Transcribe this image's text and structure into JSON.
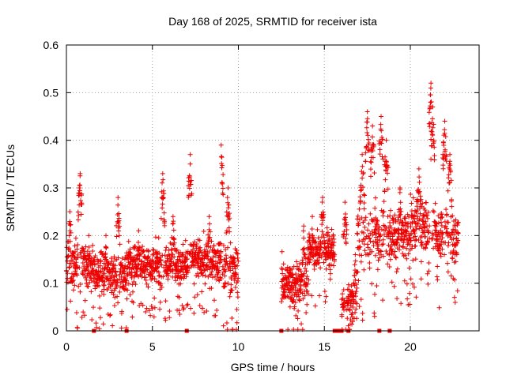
{
  "chart_data": {
    "type": "scatter",
    "title": "Day 168 of 2025, SRMTID for receiver ista",
    "xlabel": "GPS time / hours",
    "ylabel": "SRMTID / TECUs",
    "xlim": [
      0,
      24
    ],
    "ylim": [
      0,
      0.6
    ],
    "x_ticks": [
      {
        "value": 0,
        "label": "0"
      },
      {
        "value": 5,
        "label": "5"
      },
      {
        "value": 10,
        "label": "10"
      },
      {
        "value": 15,
        "label": "15"
      },
      {
        "value": 20,
        "label": "20"
      }
    ],
    "y_ticks": [
      {
        "value": 0,
        "label": "0"
      },
      {
        "value": 0.1,
        "label": "0.1"
      },
      {
        "value": 0.2,
        "label": "0.2"
      },
      {
        "value": 0.3,
        "label": "0.3"
      },
      {
        "value": 0.4,
        "label": "0.4"
      },
      {
        "value": 0.5,
        "label": "0.5"
      },
      {
        "value": 0.6,
        "label": "0.6"
      }
    ],
    "grid": true,
    "marker": "plus",
    "color": "#ee0000",
    "zero_markers_x": [
      1.6,
      3.5,
      7.0,
      12.5,
      15.6,
      15.8,
      16.0,
      16.4,
      18.2,
      18.8
    ],
    "segments": [
      {
        "x0": 0.0,
        "x1": 1.6,
        "base": 0.14,
        "spread": 0.07,
        "peaks": [
          [
            0.2,
            0.25
          ],
          [
            0.8,
            0.33
          ],
          [
            1.3,
            0.2
          ]
        ]
      },
      {
        "x0": 1.6,
        "x1": 3.5,
        "base": 0.12,
        "spread": 0.06,
        "peaks": [
          [
            3.0,
            0.28
          ],
          [
            2.3,
            0.2
          ]
        ]
      },
      {
        "x0": 3.5,
        "x1": 7.0,
        "base": 0.14,
        "spread": 0.06,
        "peaks": [
          [
            5.6,
            0.33
          ],
          [
            4.2,
            0.21
          ],
          [
            6.2,
            0.24
          ]
        ]
      },
      {
        "x0": 7.0,
        "x1": 9.0,
        "base": 0.15,
        "spread": 0.06,
        "peaks": [
          [
            7.2,
            0.37
          ],
          [
            8.3,
            0.24
          ]
        ]
      },
      {
        "x0": 9.0,
        "x1": 10.0,
        "base": 0.13,
        "spread": 0.07,
        "peaks": [
          [
            9.0,
            0.39
          ],
          [
            9.4,
            0.3
          ]
        ]
      },
      {
        "x0": 12.5,
        "x1": 14.0,
        "base": 0.1,
        "spread": 0.07,
        "peaks": [
          [
            13.8,
            0.22
          ]
        ]
      },
      {
        "x0": 14.0,
        "x1": 15.6,
        "base": 0.17,
        "spread": 0.06,
        "peaks": [
          [
            14.9,
            0.28
          ],
          [
            14.3,
            0.24
          ]
        ]
      },
      {
        "x0": 16.0,
        "x1": 16.9,
        "base": 0.06,
        "spread": 0.05,
        "peaks": [
          [
            16.2,
            0.27
          ],
          [
            16.8,
            0.16
          ]
        ]
      },
      {
        "x0": 16.9,
        "x1": 18.0,
        "base": 0.2,
        "spread": 0.09,
        "peaks": [
          [
            17.5,
            0.46
          ],
          [
            17.2,
            0.37
          ],
          [
            17.8,
            0.43
          ]
        ]
      },
      {
        "x0": 18.0,
        "x1": 20.0,
        "base": 0.2,
        "spread": 0.08,
        "peaks": [
          [
            18.3,
            0.45
          ],
          [
            18.6,
            0.4
          ],
          [
            19.4,
            0.3
          ]
        ]
      },
      {
        "x0": 20.0,
        "x1": 21.5,
        "base": 0.22,
        "spread": 0.08,
        "peaks": [
          [
            21.2,
            0.52
          ],
          [
            21.3,
            0.47
          ],
          [
            20.5,
            0.34
          ]
        ]
      },
      {
        "x0": 21.5,
        "x1": 22.8,
        "base": 0.2,
        "spread": 0.08,
        "peaks": [
          [
            22.0,
            0.44
          ],
          [
            22.3,
            0.37
          ]
        ]
      }
    ]
  }
}
